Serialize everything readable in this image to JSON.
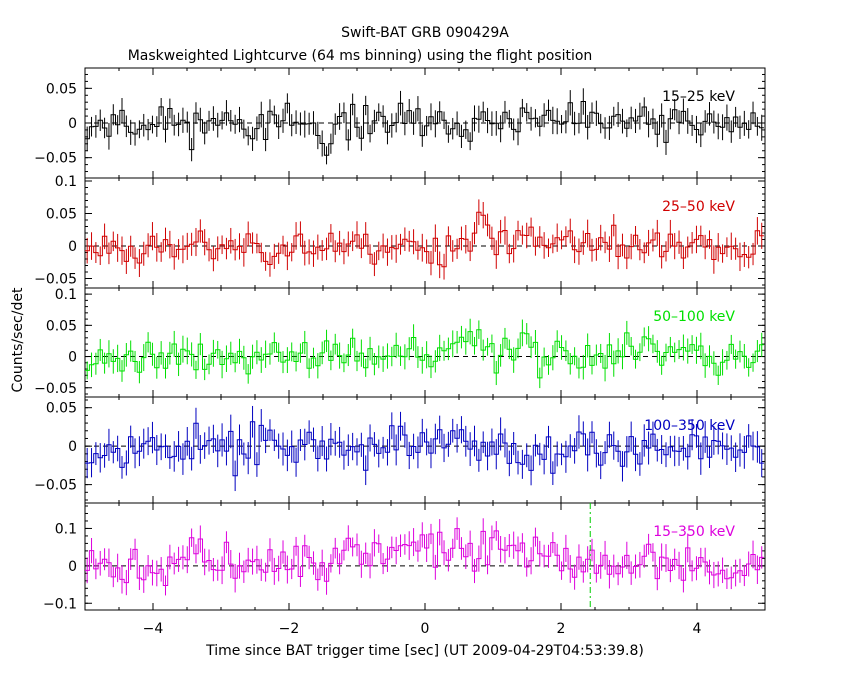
{
  "chart_data": {
    "type": "line",
    "title": "Swift-BAT GRB 090429A",
    "subtitle": "Maskweighted Lightcurve (64 ms binning) using the flight position",
    "xlabel": "Time since BAT trigger time [sec] (UT 2009-04-29T04:53:39.8)",
    "ylabel": "Counts/sec/det",
    "xlim": [
      -5,
      5
    ],
    "x_ticks": [
      -4,
      -2,
      0,
      2,
      4
    ],
    "x_tick_labels": [
      "−4",
      "−2",
      "0",
      "2",
      "4"
    ],
    "bin_width_s": 0.064,
    "panels": [
      {
        "band": "15–25 keV",
        "color": "#000000",
        "ylim": [
          -0.075,
          0.075
        ],
        "ticks": [
          -0.05,
          0,
          0.05
        ],
        "tick_labels": [
          "−0.05",
          "0",
          "0.05"
        ],
        "features": [
          {
            "t": -1.45,
            "v": -0.06,
            "w": 0.08
          }
        ],
        "noise": 0.018,
        "seed": 11
      },
      {
        "band": "25–50 keV",
        "color": "#d00000",
        "ylim": [
          -0.06,
          0.1
        ],
        "ticks": [
          -0.05,
          0,
          0.05,
          0.1
        ],
        "tick_labels": [
          "−0.05",
          "0",
          "0.05",
          "0.1"
        ],
        "features": [
          {
            "t": 0.8,
            "v": 0.06,
            "w": 0.08
          },
          {
            "t": 1.5,
            "v": 0.04,
            "w": 0.08
          }
        ],
        "noise": 0.02,
        "seed": 23
      },
      {
        "band": "50–100 keV",
        "color": "#00e000",
        "ylim": [
          -0.06,
          0.105
        ],
        "ticks": [
          -0.05,
          0,
          0.05,
          0.1
        ],
        "tick_labels": [
          "−0.05",
          "0",
          "0.05",
          "0.1"
        ],
        "features": [
          {
            "t": 1.5,
            "v": 0.06,
            "w": 0.08
          },
          {
            "t": 0.7,
            "v": 0.03,
            "w": 0.2
          }
        ],
        "noise": 0.02,
        "seed": 37
      },
      {
        "band": "100–350 keV",
        "color": "#0000c0",
        "ylim": [
          -0.07,
          0.06
        ],
        "ticks": [
          -0.05,
          0,
          0.05
        ],
        "tick_labels": [
          "−0.05",
          "0",
          "0.05"
        ],
        "features": [
          {
            "t": 1.5,
            "v": -0.03,
            "w": 0.08
          }
        ],
        "noise": 0.02,
        "seed": 53
      },
      {
        "band": "15–350 keV",
        "color": "#dd00dd",
        "ylim": [
          -0.11,
          0.16
        ],
        "ticks": [
          -0.1,
          0,
          0.1
        ],
        "tick_labels": [
          "−0.1",
          "0",
          "0.1"
        ],
        "features": [
          {
            "t": 0.3,
            "v": 0.05,
            "w": 1.2
          },
          {
            "t": -3.4,
            "v": 0.05,
            "w": 0.1
          }
        ],
        "noise": 0.035,
        "seed": 71,
        "marker_t": 2.43
      }
    ]
  }
}
